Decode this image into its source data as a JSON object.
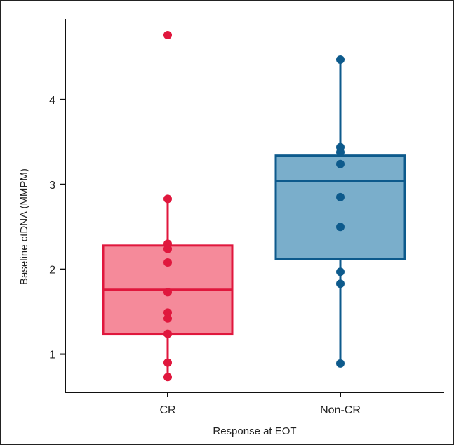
{
  "chart_data": {
    "type": "box",
    "title": "",
    "xlabel": "Response at EOT",
    "ylabel": "Baseline ctDNA (MMPM)",
    "ylim": [
      0.55,
      4.95
    ],
    "yticks": [
      1,
      2,
      3,
      4
    ],
    "categories": [
      "CR",
      "Non-CR"
    ],
    "grid": false,
    "legend": "none",
    "groups": [
      {
        "category": "CR",
        "color": "#e0173d",
        "fill": "#f58a9a",
        "box": {
          "q1": 1.24,
          "median": 1.76,
          "q3": 2.28,
          "whisker_low": 0.73,
          "whisker_high": 2.83
        },
        "points": [
          4.76,
          2.83,
          2.3,
          2.24,
          2.08,
          1.73,
          1.49,
          1.42,
          1.24,
          0.9,
          0.73
        ]
      },
      {
        "category": "Non-CR",
        "color": "#0d5a8c",
        "fill": "#7aaecb",
        "box": {
          "q1": 2.12,
          "median": 3.04,
          "q3": 3.34,
          "whisker_low": 0.89,
          "whisker_high": 4.47
        },
        "points": [
          4.47,
          3.44,
          3.38,
          3.24,
          2.85,
          2.5,
          1.97,
          1.83,
          0.89
        ]
      }
    ]
  }
}
